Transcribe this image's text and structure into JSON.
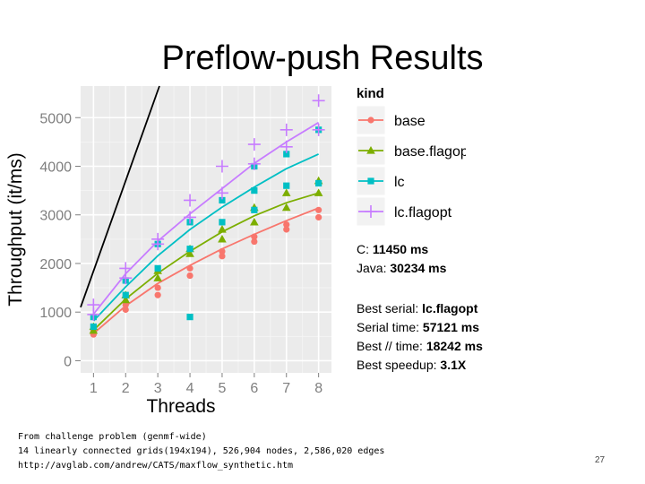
{
  "slide": {
    "title": "Preflow-push Results",
    "page_number": "27"
  },
  "stats": {
    "c_label": "C:",
    "c_value": "11450 ms",
    "java_label": "Java:",
    "java_value": "30234 ms",
    "best_serial_label": "Best serial:",
    "best_serial_value": "lc.flagopt",
    "serial_time_label": "Serial time:",
    "serial_time_value": "57121 ms",
    "best_par_label": "Best // time:",
    "best_par_value": "18242 ms",
    "best_speedup_label": "Best speedup:",
    "best_speedup_value": "3.1X"
  },
  "footer": {
    "line1": "From challenge problem (genmf-wide)",
    "line2": "14 linearly connected grids(194x194), 526,904 nodes,  2,586,020 edges",
    "line3": "http://avglab.com/andrew/CATS/maxflow_synthetic.htm"
  },
  "chart_data": {
    "type": "scatter",
    "xlabel": "Threads",
    "ylabel": "Throughput (it/ms)",
    "x": [
      1,
      2,
      3,
      4,
      5,
      6,
      7,
      8
    ],
    "xticks": [
      "1",
      "2",
      "3",
      "4",
      "5",
      "6",
      "7",
      "8"
    ],
    "yticks": [
      0,
      1000,
      2000,
      3000,
      4000,
      5000
    ],
    "xlim": [
      0.6,
      8.4
    ],
    "ylim": [
      -250,
      5650
    ],
    "legend_title": "kind",
    "legend_position": "right",
    "grid": true,
    "reference_line": {
      "x": [
        0.6,
        3.05
      ],
      "y": [
        1100,
        5650
      ],
      "color": "#000000"
    },
    "series": [
      {
        "name": "base",
        "color": "#F8766D",
        "marker": "circle",
        "fit": [
          560,
          1130,
          1590,
          1960,
          2300,
          2600,
          2880,
          3140
        ],
        "points": [
          [
            1,
            540
          ],
          [
            1,
            600
          ],
          [
            2,
            1050
          ],
          [
            2,
            1150
          ],
          [
            3,
            1350
          ],
          [
            3,
            1500
          ],
          [
            4,
            1750
          ],
          [
            4,
            1900
          ],
          [
            5,
            2150
          ],
          [
            5,
            2250
          ],
          [
            6,
            2450
          ],
          [
            6,
            2550
          ],
          [
            7,
            2700
          ],
          [
            7,
            2800
          ],
          [
            8,
            2950
          ],
          [
            8,
            3100
          ]
        ]
      },
      {
        "name": "base.flagopt",
        "color": "#7CAE00",
        "marker": "triangle",
        "fit": [
          630,
          1270,
          1800,
          2250,
          2650,
          2980,
          3250,
          3450
        ],
        "points": [
          [
            1,
            620
          ],
          [
            1,
            700
          ],
          [
            2,
            1250
          ],
          [
            2,
            1350
          ],
          [
            3,
            1700
          ],
          [
            3,
            1850
          ],
          [
            4,
            2200
          ],
          [
            4,
            2300
          ],
          [
            5,
            2500
          ],
          [
            5,
            2700
          ],
          [
            6,
            2850
          ],
          [
            6,
            3150
          ],
          [
            7,
            3150
          ],
          [
            7,
            3450
          ],
          [
            8,
            3450
          ],
          [
            8,
            3700
          ]
        ]
      },
      {
        "name": "lc",
        "color": "#00BFC4",
        "marker": "square",
        "fit": [
          820,
          1520,
          2160,
          2700,
          3160,
          3570,
          3950,
          4250
        ],
        "points": [
          [
            1,
            700
          ],
          [
            1,
            900
          ],
          [
            2,
            1350
          ],
          [
            2,
            1650
          ],
          [
            3,
            1900
          ],
          [
            3,
            2400
          ],
          [
            4,
            900
          ],
          [
            4,
            2300
          ],
          [
            4,
            2850
          ],
          [
            5,
            2850
          ],
          [
            5,
            3300
          ],
          [
            6,
            3100
          ],
          [
            6,
            3500
          ],
          [
            6,
            4000
          ],
          [
            7,
            3600
          ],
          [
            7,
            4250
          ],
          [
            8,
            3650
          ],
          [
            8,
            4750
          ]
        ]
      },
      {
        "name": "lc.flagopt",
        "color": "#C77CFF",
        "marker": "plus",
        "fit": [
          960,
          1790,
          2460,
          3020,
          3540,
          4060,
          4500,
          4900
        ],
        "points": [
          [
            1,
            950
          ],
          [
            1,
            1150
          ],
          [
            2,
            1700
          ],
          [
            2,
            1900
          ],
          [
            3,
            2400
          ],
          [
            3,
            2500
          ],
          [
            4,
            2950
          ],
          [
            4,
            3300
          ],
          [
            5,
            3450
          ],
          [
            5,
            4000
          ],
          [
            6,
            4050
          ],
          [
            6,
            4450
          ],
          [
            7,
            4400
          ],
          [
            7,
            4750
          ],
          [
            8,
            4750
          ],
          [
            8,
            5350
          ]
        ]
      }
    ]
  }
}
